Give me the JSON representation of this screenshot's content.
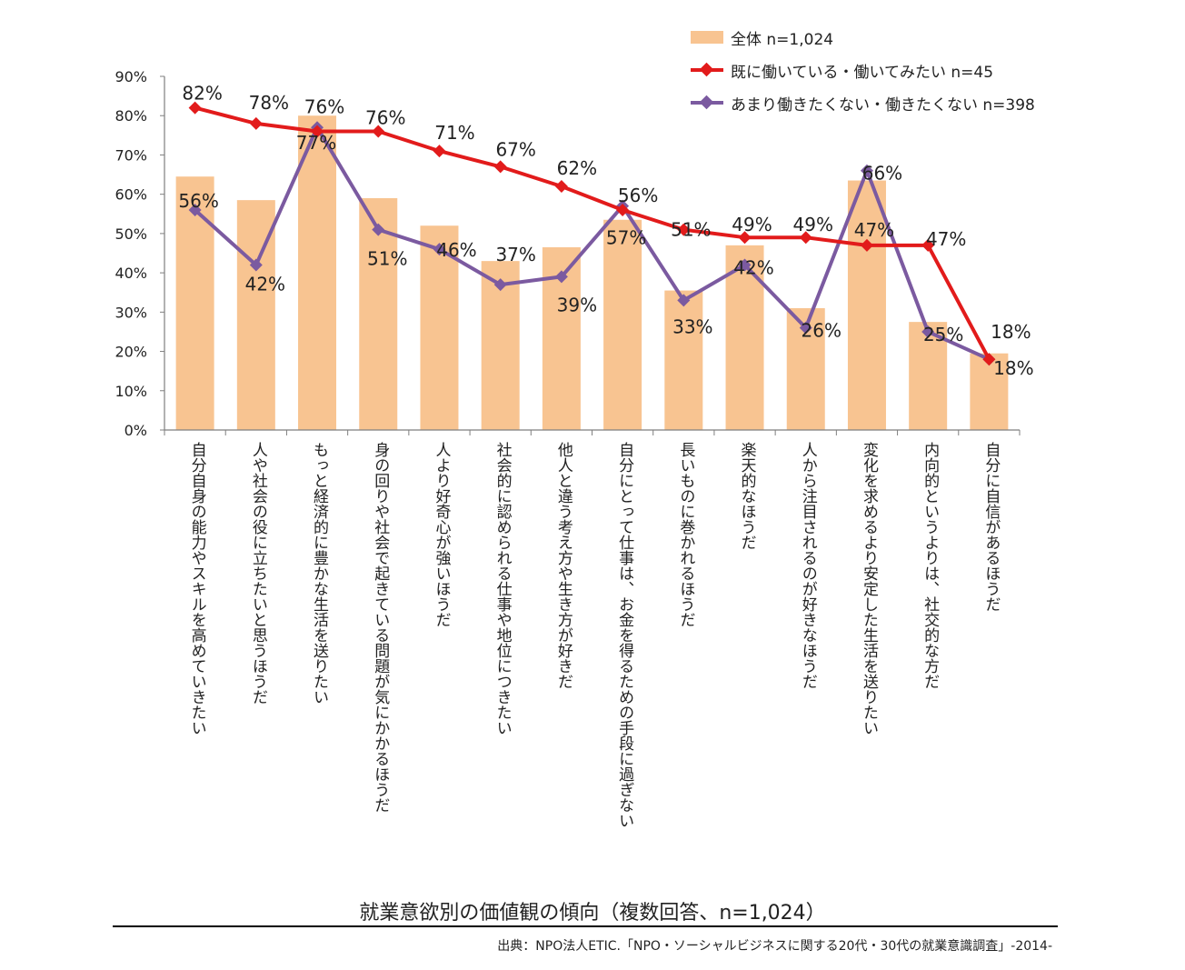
{
  "chart_data": {
    "type": "bar",
    "title": "就業意欲別の価値観の傾向（複数回答、n=1,024）",
    "xlabel": "",
    "ylabel": "",
    "ylim": [
      0,
      90
    ],
    "yticks": [
      "0%",
      "10%",
      "20%",
      "30%",
      "40%",
      "50%",
      "60%",
      "70%",
      "80%",
      "90%"
    ],
    "grid": false,
    "legend": "top-right",
    "categories": [
      "自分自身の能力やスキルを高めていきたい",
      "人や社会の役に立ちたいと思うほうだ",
      "もっと経済的に豊かな生活を送りたい",
      "身の回りや社会で起きている問題が気にかかるほうだ",
      "人より好奇心が強いほうだ",
      "社会的に認められる仕事や地位につきたい",
      "他人と違う考え方や生き方が好きだ",
      "自分にとって仕事は、お金を得るための手段に過ぎない",
      "長いものに巻かれるほうだ",
      "楽天的なほうだ",
      "人から注目されるのが好きなほうだ",
      "変化を求めるより安定した生活を送りたい",
      "内向的というよりは、社交的な方だ",
      "自分に自信があるほうだ"
    ],
    "series": [
      {
        "name": "全体 n=1,024",
        "kind": "bar",
        "color": "#f8c491",
        "values": [
          64.5,
          58.5,
          80,
          59,
          52,
          43,
          46.5,
          53.5,
          35.5,
          47,
          31,
          63.5,
          27.5,
          19.5
        ]
      },
      {
        "name": "既に働いている・働いてみたい n=45",
        "kind": "line",
        "color": "#e21b1b",
        "values": [
          82,
          78,
          76,
          76,
          71,
          67,
          62,
          56,
          51,
          49,
          49,
          47,
          47,
          18
        ],
        "labels": [
          "82%",
          "78%",
          "76%",
          "76%",
          "71%",
          "67%",
          "62%",
          "56%",
          "51%",
          "49%",
          "49%",
          "47%",
          "47%",
          "18%"
        ]
      },
      {
        "name": "あまり働きたくない・働きたくない n=398",
        "kind": "line",
        "color": "#7b5aa0",
        "values": [
          56,
          42,
          77,
          51,
          46,
          37,
          39,
          57,
          33,
          42,
          26,
          66,
          25,
          18
        ],
        "labels": [
          "56%",
          "42%",
          "77%",
          "51%",
          "46%",
          "37%",
          "39%",
          "57%",
          "33%",
          "42%",
          "26%",
          "66%",
          "25%",
          "18%"
        ]
      }
    ]
  },
  "footer": {
    "title": "就業意欲別の価値観の傾向（複数回答、n=1,024）",
    "source": "出典：NPO法人ETIC.「NPO・ソーシャルビジネスに関する20代・30代の就業意識調査」-2014-"
  }
}
